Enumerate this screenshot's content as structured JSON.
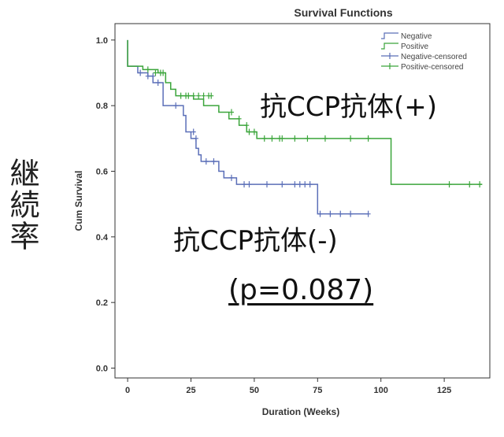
{
  "chart_data": {
    "type": "line",
    "title": "Survival Functions",
    "xlabel": "Duration (Weeks)",
    "ylabel": "Cum Survival",
    "xlim": [
      -5,
      143
    ],
    "ylim": [
      -0.03,
      1.05
    ],
    "x_ticks": [
      "0",
      "25",
      "50",
      "75",
      "100",
      "125"
    ],
    "y_ticks": [
      "0.0",
      "0.2",
      "0.4",
      "0.6",
      "0.8",
      "1.0"
    ],
    "legend_position": "top-right",
    "legend": [
      "Negative",
      "Positive",
      "Negative-censored",
      "Positive-censored"
    ],
    "series": [
      {
        "name": "Negative",
        "color": "#5b6fb8",
        "step_x": [
          0,
          0,
          4,
          8,
          10,
          14,
          14,
          18,
          22,
          23,
          25,
          27,
          28,
          29,
          31,
          36,
          38,
          43,
          75,
          95
        ],
        "step_y": [
          1.0,
          0.92,
          0.9,
          0.89,
          0.87,
          0.84,
          0.8,
          0.8,
          0.77,
          0.72,
          0.7,
          0.67,
          0.65,
          0.63,
          0.63,
          0.6,
          0.58,
          0.56,
          0.47,
          0.47
        ],
        "censored_x": [
          5,
          8,
          10,
          12,
          19,
          26,
          27,
          31,
          34,
          41,
          46,
          48,
          55,
          61,
          66,
          68,
          70,
          72,
          76,
          80,
          84,
          88,
          95
        ],
        "censored_y": [
          0.9,
          0.89,
          0.89,
          0.87,
          0.8,
          0.72,
          0.7,
          0.63,
          0.63,
          0.58,
          0.56,
          0.56,
          0.56,
          0.56,
          0.56,
          0.56,
          0.56,
          0.56,
          0.47,
          0.47,
          0.47,
          0.47,
          0.47
        ]
      },
      {
        "name": "Positive",
        "color": "#3ba53b",
        "step_x": [
          0,
          0,
          6,
          12,
          15,
          17,
          19,
          26,
          30,
          36,
          40,
          44,
          47,
          50,
          51,
          104,
          140
        ],
        "step_y": [
          1.0,
          0.92,
          0.91,
          0.9,
          0.87,
          0.85,
          0.83,
          0.82,
          0.8,
          0.78,
          0.76,
          0.74,
          0.72,
          0.72,
          0.7,
          0.56,
          0.56
        ],
        "censored_x": [
          8,
          11,
          13,
          14,
          21,
          23,
          24,
          26,
          28,
          30,
          32,
          33,
          41,
          44,
          47,
          48,
          50,
          54,
          57,
          60,
          61,
          66,
          71,
          78,
          88,
          95,
          127,
          135,
          139
        ],
        "censored_y": [
          0.91,
          0.9,
          0.9,
          0.9,
          0.83,
          0.83,
          0.83,
          0.83,
          0.83,
          0.83,
          0.83,
          0.83,
          0.78,
          0.76,
          0.74,
          0.72,
          0.72,
          0.7,
          0.7,
          0.7,
          0.7,
          0.7,
          0.7,
          0.7,
          0.7,
          0.7,
          0.56,
          0.56,
          0.56
        ]
      }
    ]
  },
  "annotations": {
    "side_label": "継続率",
    "positive_label": "抗CCP抗体(+)",
    "negative_label": "抗CCP抗体(-)",
    "p_value": "(p=0.087)"
  }
}
